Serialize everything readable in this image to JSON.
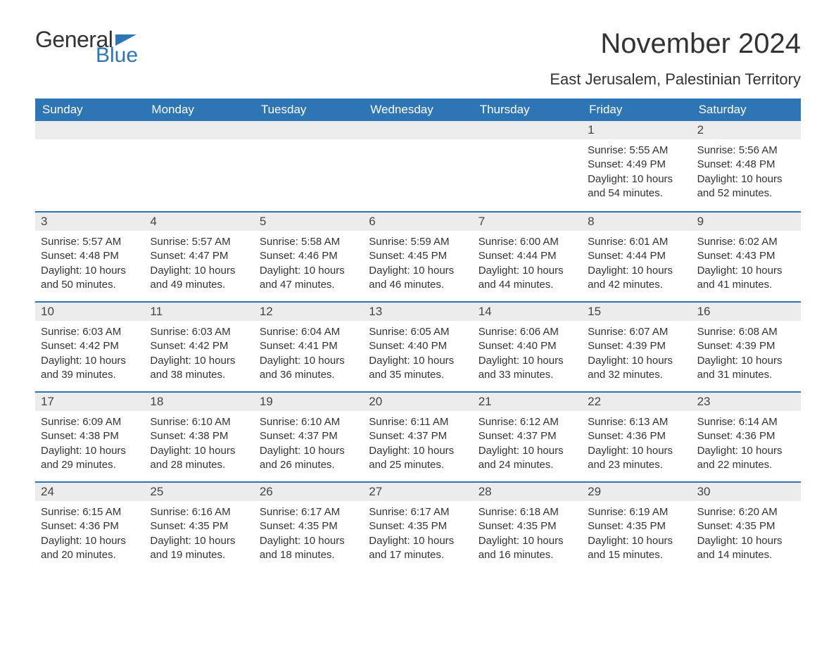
{
  "brand": {
    "word1": "General",
    "word2": "Blue",
    "flag_color": "#2e75b6"
  },
  "title": "November 2024",
  "subtitle": "East Jerusalem, Palestinian Territory",
  "colors": {
    "header_bg": "#2e75b6",
    "header_text": "#ffffff",
    "daynum_bg": "#ececec",
    "body_text": "#333333",
    "page_bg": "#ffffff"
  },
  "day_headers": [
    "Sunday",
    "Monday",
    "Tuesday",
    "Wednesday",
    "Thursday",
    "Friday",
    "Saturday"
  ],
  "weeks": [
    [
      null,
      null,
      null,
      null,
      null,
      {
        "n": "1",
        "sunrise": "Sunrise: 5:55 AM",
        "sunset": "Sunset: 4:49 PM",
        "daylight": "Daylight: 10 hours and 54 minutes."
      },
      {
        "n": "2",
        "sunrise": "Sunrise: 5:56 AM",
        "sunset": "Sunset: 4:48 PM",
        "daylight": "Daylight: 10 hours and 52 minutes."
      }
    ],
    [
      {
        "n": "3",
        "sunrise": "Sunrise: 5:57 AM",
        "sunset": "Sunset: 4:48 PM",
        "daylight": "Daylight: 10 hours and 50 minutes."
      },
      {
        "n": "4",
        "sunrise": "Sunrise: 5:57 AM",
        "sunset": "Sunset: 4:47 PM",
        "daylight": "Daylight: 10 hours and 49 minutes."
      },
      {
        "n": "5",
        "sunrise": "Sunrise: 5:58 AM",
        "sunset": "Sunset: 4:46 PM",
        "daylight": "Daylight: 10 hours and 47 minutes."
      },
      {
        "n": "6",
        "sunrise": "Sunrise: 5:59 AM",
        "sunset": "Sunset: 4:45 PM",
        "daylight": "Daylight: 10 hours and 46 minutes."
      },
      {
        "n": "7",
        "sunrise": "Sunrise: 6:00 AM",
        "sunset": "Sunset: 4:44 PM",
        "daylight": "Daylight: 10 hours and 44 minutes."
      },
      {
        "n": "8",
        "sunrise": "Sunrise: 6:01 AM",
        "sunset": "Sunset: 4:44 PM",
        "daylight": "Daylight: 10 hours and 42 minutes."
      },
      {
        "n": "9",
        "sunrise": "Sunrise: 6:02 AM",
        "sunset": "Sunset: 4:43 PM",
        "daylight": "Daylight: 10 hours and 41 minutes."
      }
    ],
    [
      {
        "n": "10",
        "sunrise": "Sunrise: 6:03 AM",
        "sunset": "Sunset: 4:42 PM",
        "daylight": "Daylight: 10 hours and 39 minutes."
      },
      {
        "n": "11",
        "sunrise": "Sunrise: 6:03 AM",
        "sunset": "Sunset: 4:42 PM",
        "daylight": "Daylight: 10 hours and 38 minutes."
      },
      {
        "n": "12",
        "sunrise": "Sunrise: 6:04 AM",
        "sunset": "Sunset: 4:41 PM",
        "daylight": "Daylight: 10 hours and 36 minutes."
      },
      {
        "n": "13",
        "sunrise": "Sunrise: 6:05 AM",
        "sunset": "Sunset: 4:40 PM",
        "daylight": "Daylight: 10 hours and 35 minutes."
      },
      {
        "n": "14",
        "sunrise": "Sunrise: 6:06 AM",
        "sunset": "Sunset: 4:40 PM",
        "daylight": "Daylight: 10 hours and 33 minutes."
      },
      {
        "n": "15",
        "sunrise": "Sunrise: 6:07 AM",
        "sunset": "Sunset: 4:39 PM",
        "daylight": "Daylight: 10 hours and 32 minutes."
      },
      {
        "n": "16",
        "sunrise": "Sunrise: 6:08 AM",
        "sunset": "Sunset: 4:39 PM",
        "daylight": "Daylight: 10 hours and 31 minutes."
      }
    ],
    [
      {
        "n": "17",
        "sunrise": "Sunrise: 6:09 AM",
        "sunset": "Sunset: 4:38 PM",
        "daylight": "Daylight: 10 hours and 29 minutes."
      },
      {
        "n": "18",
        "sunrise": "Sunrise: 6:10 AM",
        "sunset": "Sunset: 4:38 PM",
        "daylight": "Daylight: 10 hours and 28 minutes."
      },
      {
        "n": "19",
        "sunrise": "Sunrise: 6:10 AM",
        "sunset": "Sunset: 4:37 PM",
        "daylight": "Daylight: 10 hours and 26 minutes."
      },
      {
        "n": "20",
        "sunrise": "Sunrise: 6:11 AM",
        "sunset": "Sunset: 4:37 PM",
        "daylight": "Daylight: 10 hours and 25 minutes."
      },
      {
        "n": "21",
        "sunrise": "Sunrise: 6:12 AM",
        "sunset": "Sunset: 4:37 PM",
        "daylight": "Daylight: 10 hours and 24 minutes."
      },
      {
        "n": "22",
        "sunrise": "Sunrise: 6:13 AM",
        "sunset": "Sunset: 4:36 PM",
        "daylight": "Daylight: 10 hours and 23 minutes."
      },
      {
        "n": "23",
        "sunrise": "Sunrise: 6:14 AM",
        "sunset": "Sunset: 4:36 PM",
        "daylight": "Daylight: 10 hours and 22 minutes."
      }
    ],
    [
      {
        "n": "24",
        "sunrise": "Sunrise: 6:15 AM",
        "sunset": "Sunset: 4:36 PM",
        "daylight": "Daylight: 10 hours and 20 minutes."
      },
      {
        "n": "25",
        "sunrise": "Sunrise: 6:16 AM",
        "sunset": "Sunset: 4:35 PM",
        "daylight": "Daylight: 10 hours and 19 minutes."
      },
      {
        "n": "26",
        "sunrise": "Sunrise: 6:17 AM",
        "sunset": "Sunset: 4:35 PM",
        "daylight": "Daylight: 10 hours and 18 minutes."
      },
      {
        "n": "27",
        "sunrise": "Sunrise: 6:17 AM",
        "sunset": "Sunset: 4:35 PM",
        "daylight": "Daylight: 10 hours and 17 minutes."
      },
      {
        "n": "28",
        "sunrise": "Sunrise: 6:18 AM",
        "sunset": "Sunset: 4:35 PM",
        "daylight": "Daylight: 10 hours and 16 minutes."
      },
      {
        "n": "29",
        "sunrise": "Sunrise: 6:19 AM",
        "sunset": "Sunset: 4:35 PM",
        "daylight": "Daylight: 10 hours and 15 minutes."
      },
      {
        "n": "30",
        "sunrise": "Sunrise: 6:20 AM",
        "sunset": "Sunset: 4:35 PM",
        "daylight": "Daylight: 10 hours and 14 minutes."
      }
    ]
  ]
}
